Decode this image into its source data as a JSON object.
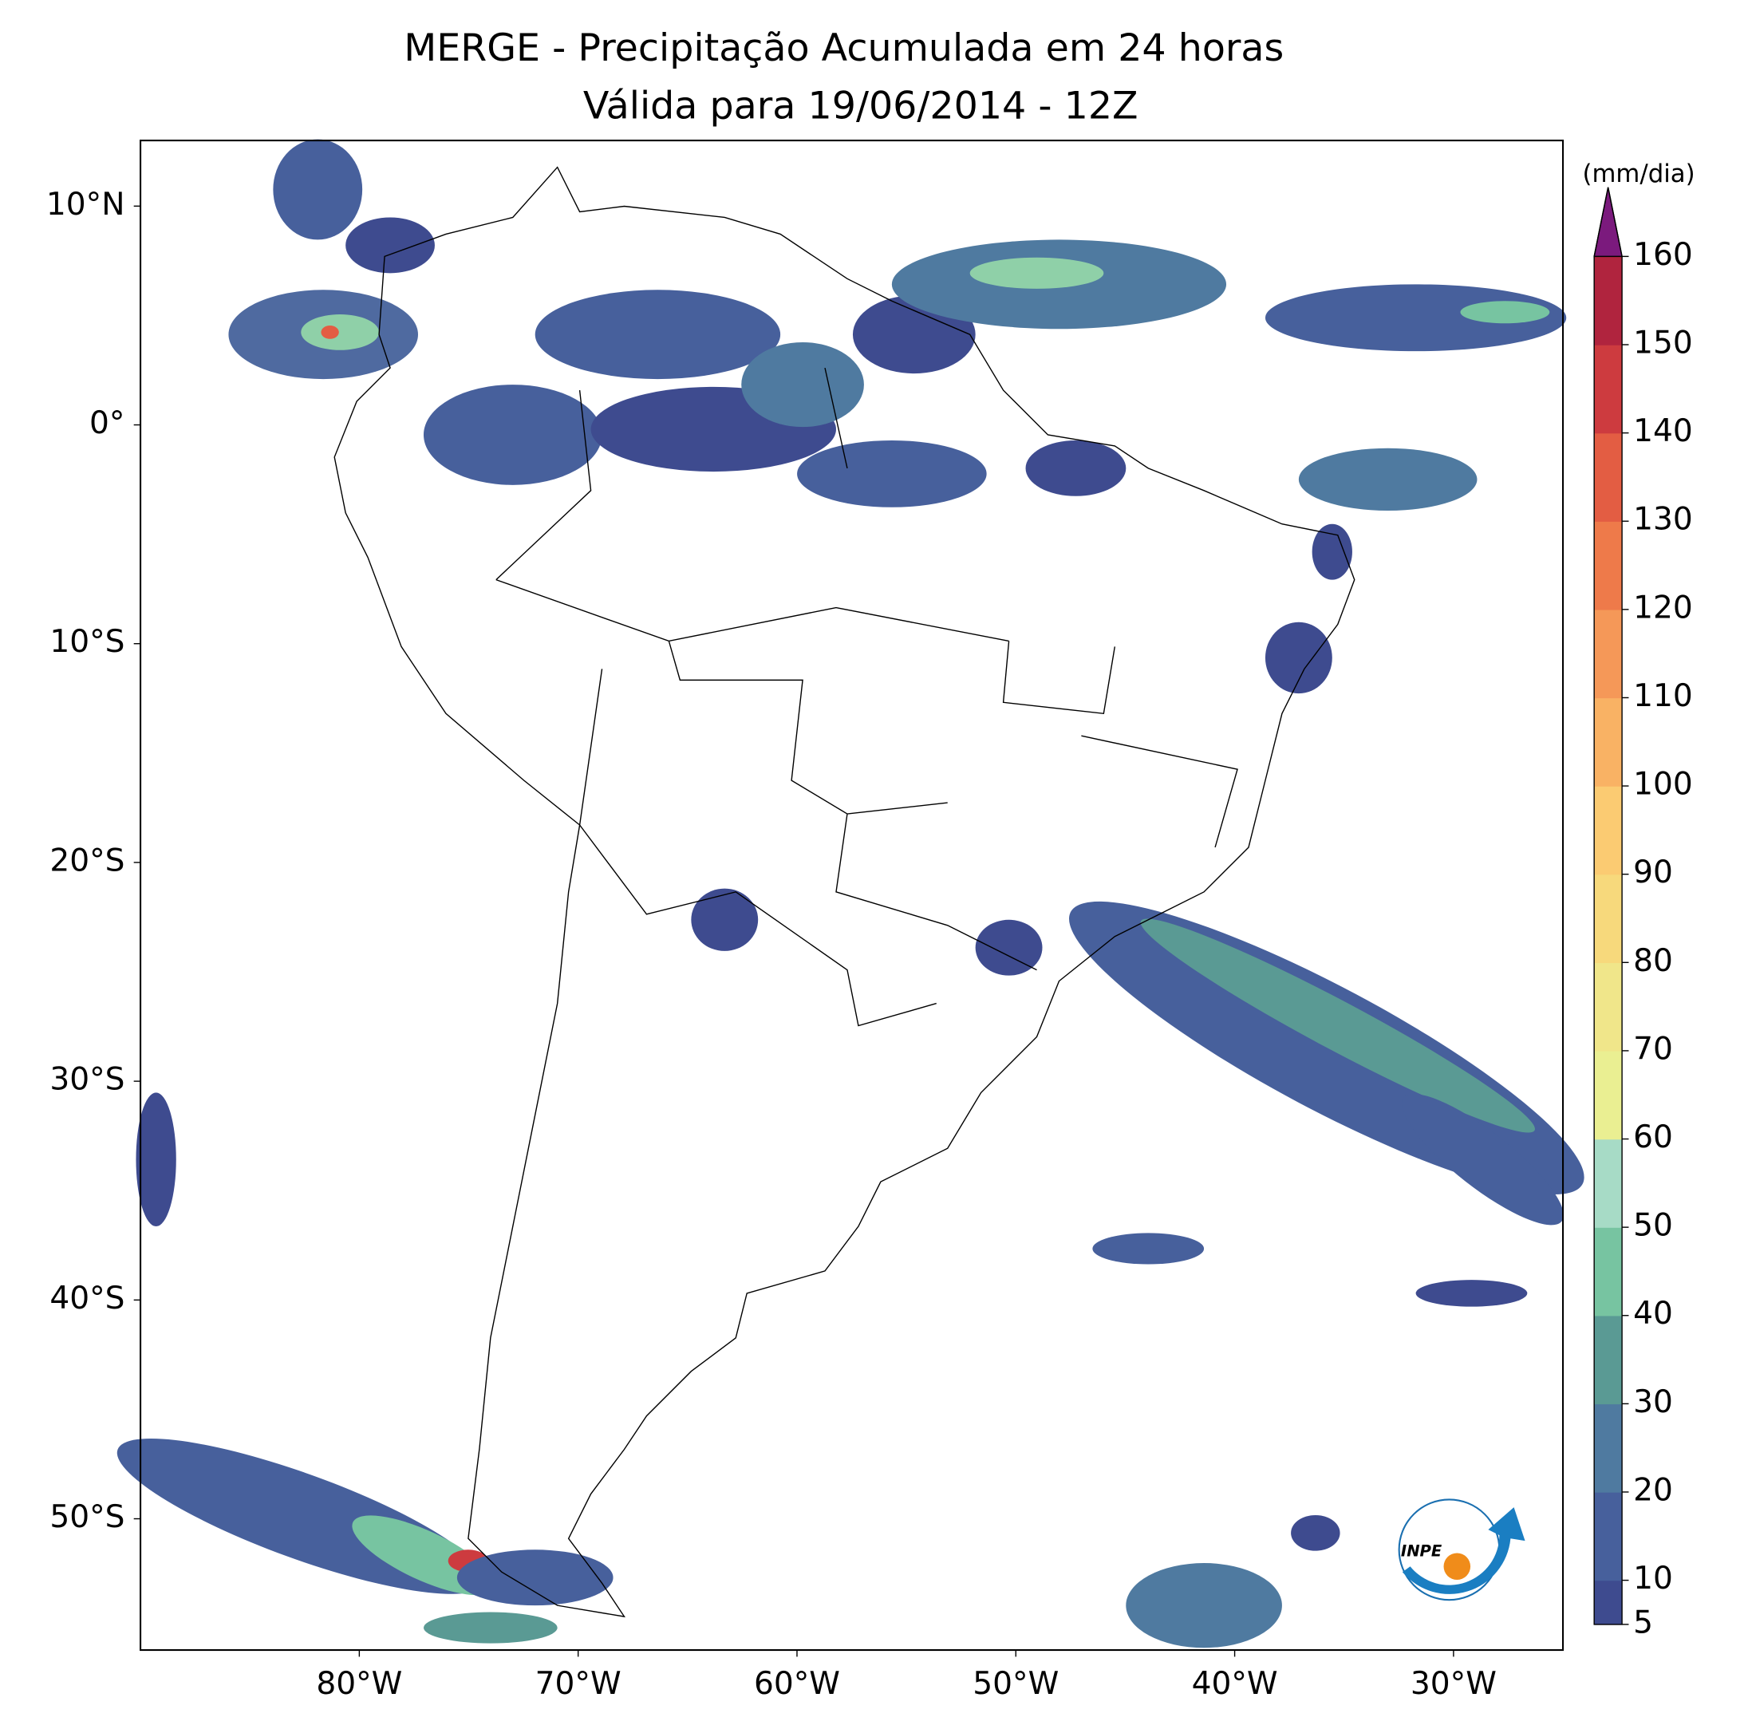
{
  "title": "MERGE - Precipitação Acumulada em 24 horas",
  "subtitle": "Válida para 19/06/2014 - 12Z",
  "map": {
    "xlim": [
      -90,
      -25
    ],
    "ylim": [
      -56,
      13
    ],
    "xticks": [
      {
        "value": -80,
        "label": "80°W"
      },
      {
        "value": -70,
        "label": "70°W"
      },
      {
        "value": -60,
        "label": "60°W"
      },
      {
        "value": -50,
        "label": "50°W"
      },
      {
        "value": -40,
        "label": "40°W"
      },
      {
        "value": -30,
        "label": "30°W"
      }
    ],
    "yticks": [
      {
        "value": 10,
        "label": "10°N"
      },
      {
        "value": 0,
        "label": "0°"
      },
      {
        "value": -10,
        "label": "10°S"
      },
      {
        "value": -20,
        "label": "20°S"
      },
      {
        "value": -30,
        "label": "30°S"
      },
      {
        "value": -40,
        "label": "40°S"
      },
      {
        "value": -50,
        "label": "50°S"
      }
    ]
  },
  "colorbar": {
    "label": "(mm/dia)",
    "ticks": [
      5,
      10,
      20,
      30,
      40,
      50,
      60,
      70,
      80,
      90,
      100,
      110,
      120,
      130,
      140,
      150,
      160
    ],
    "colors": [
      "#3e4b8f",
      "#47609c",
      "#4f7aa0",
      "#5a9a94",
      "#77c4a1",
      "#a7dbc6",
      "#eaef92",
      "#f0e68a",
      "#f7d97c",
      "#fbcb72",
      "#f9b264",
      "#f59858",
      "#ee7a4a",
      "#e35d43",
      "#cd3b3f",
      "#b0243e"
    ],
    "over_color": "#7b1a7d"
  },
  "logo": "INPE"
}
